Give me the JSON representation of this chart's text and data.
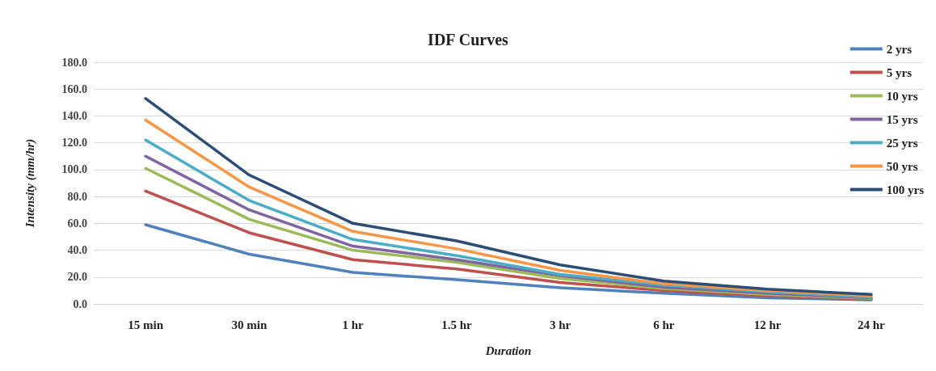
{
  "chart_data": {
    "type": "line",
    "title": "IDF Curves",
    "xlabel": "Duration",
    "ylabel": "Intensity (mm/hr)",
    "categories": [
      "15 min",
      "30 min",
      "1 hr",
      "1.5 hr",
      "3 hr",
      "6 hr",
      "12 hr",
      "24 hr"
    ],
    "series": [
      {
        "name": "2 yrs",
        "color": "#4f81bd",
        "values": [
          59,
          37,
          23.5,
          18,
          12,
          8,
          4.5,
          3
        ]
      },
      {
        "name": "5 yrs",
        "color": "#c0504d",
        "values": [
          84,
          53,
          33,
          26,
          16,
          10,
          6,
          3.5
        ]
      },
      {
        "name": "10 yrs",
        "color": "#9bbb59",
        "values": [
          101,
          63,
          40,
          31,
          19,
          11.5,
          7,
          4
        ]
      },
      {
        "name": "15 yrs",
        "color": "#8064a2",
        "values": [
          110,
          70,
          43,
          33,
          21,
          12.5,
          8,
          4.5
        ]
      },
      {
        "name": "25 yrs",
        "color": "#4bacc6",
        "values": [
          122,
          77,
          48,
          36,
          22,
          14,
          9,
          5
        ]
      },
      {
        "name": "50 yrs",
        "color": "#f79646",
        "values": [
          137,
          87,
          54,
          41,
          25,
          15,
          10,
          6
        ]
      },
      {
        "name": "100 yrs",
        "color": "#2c4d75",
        "values": [
          153,
          96,
          60,
          47,
          29,
          17,
          11,
          7
        ]
      }
    ],
    "ylim": [
      0,
      180
    ],
    "yticks": [
      {
        "value": 0,
        "label": "0.0"
      },
      {
        "value": 20,
        "label": "20.0"
      },
      {
        "value": 40,
        "label": "40.0"
      },
      {
        "value": 60,
        "label": "60.0"
      },
      {
        "value": 80,
        "label": "80.0"
      },
      {
        "value": 100,
        "label": "100.0"
      },
      {
        "value": 120,
        "label": "120.0"
      },
      {
        "value": 140,
        "label": "140.0"
      },
      {
        "value": 160,
        "label": "160.0"
      },
      {
        "value": 180,
        "label": "180.0"
      }
    ],
    "grid": "y",
    "legend": "right",
    "marker": "none",
    "line_style": "solid"
  }
}
